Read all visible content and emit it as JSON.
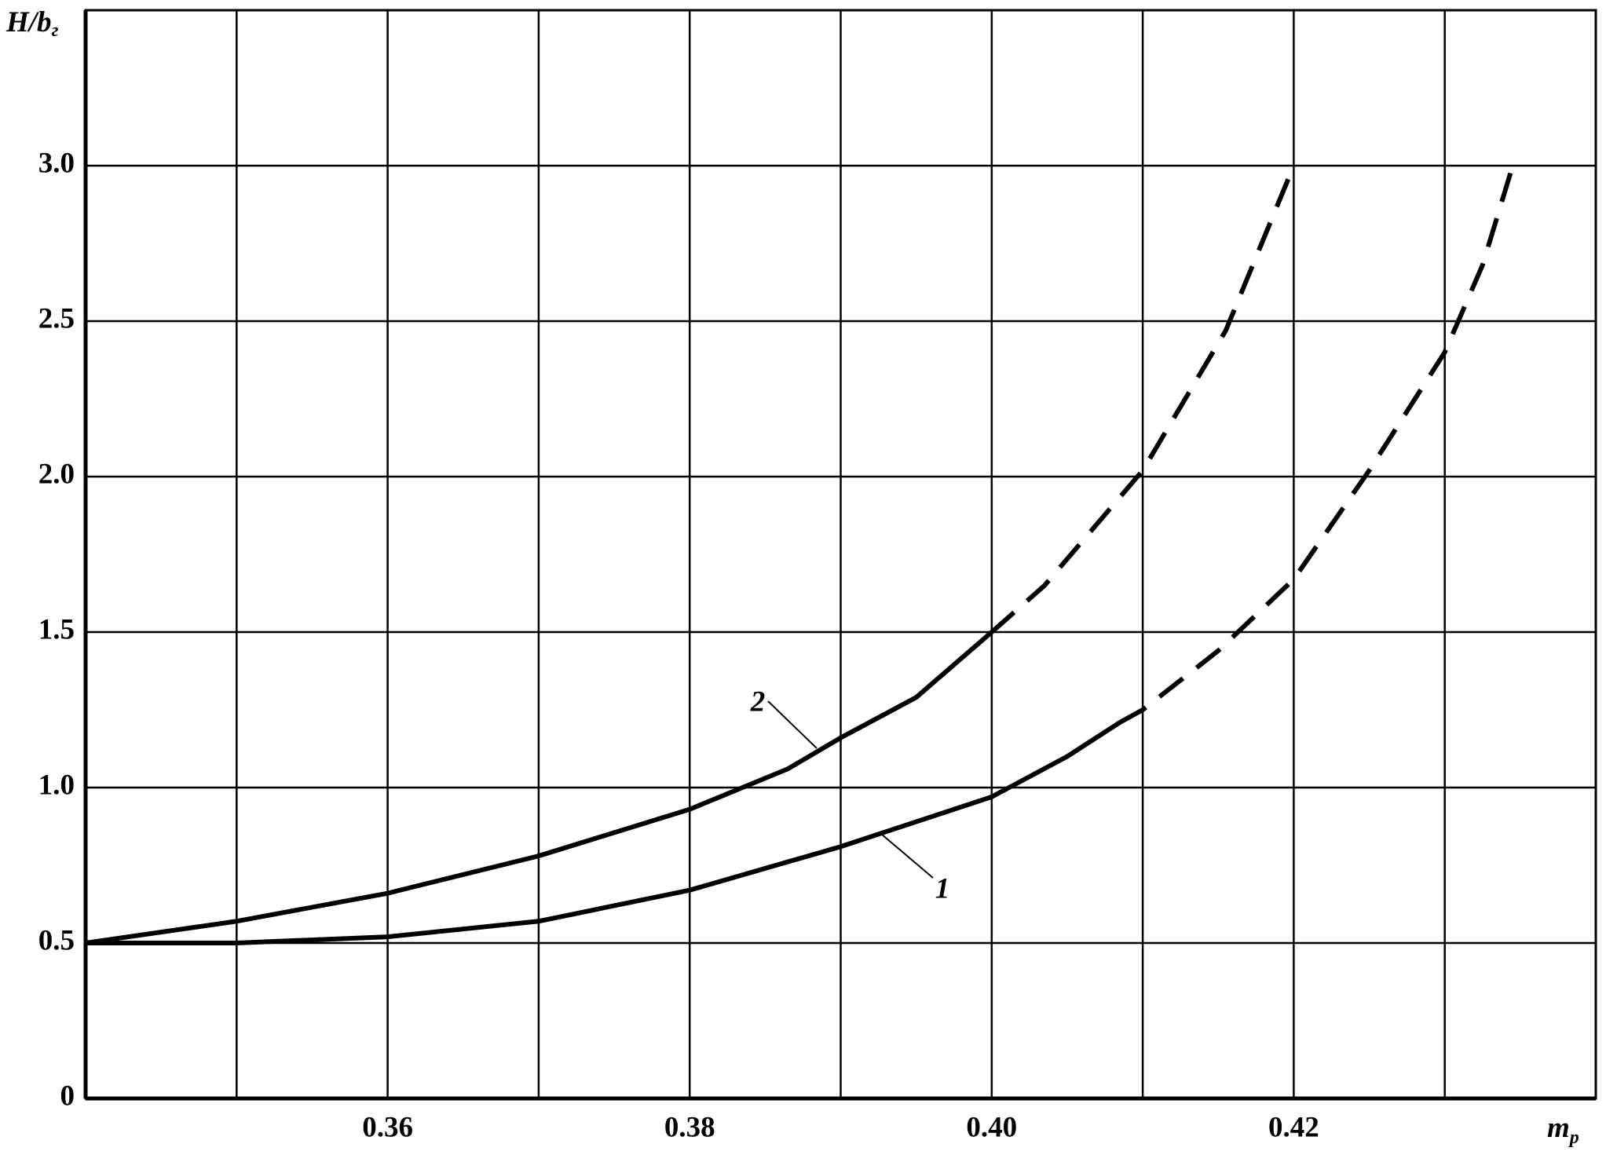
{
  "chart_data": {
    "type": "line",
    "xlabel": "m",
    "xlabel_sub": "p",
    "ylabel": "H/b",
    "ylabel_sub": "г",
    "xlim": [
      0.34,
      0.44
    ],
    "ylim": [
      0,
      3.5
    ],
    "xticks": [
      0.36,
      0.38,
      {
        "value": 0.4,
        "label": "0.40"
      },
      0.42
    ],
    "xgrid": [
      0.35,
      0.36,
      0.37,
      0.38,
      0.39,
      0.4,
      0.41,
      0.42,
      0.43
    ],
    "yticks": [
      0,
      0.5,
      {
        "value": 1,
        "label": "1.0"
      },
      1.5,
      {
        "value": 2,
        "label": "2.0"
      },
      2.5,
      {
        "value": 3,
        "label": "3.0"
      }
    ],
    "ygrid": [
      0.5,
      1,
      1.5,
      2,
      2.5,
      3
    ],
    "grid": true,
    "series": [
      {
        "name": "1",
        "color": "#000000",
        "solid": {
          "x": [
            0.34,
            0.35,
            0.36,
            0.37,
            0.38,
            0.39,
            0.4,
            0.405,
            0.4085
          ],
          "values": [
            0.5,
            0.5,
            0.52,
            0.57,
            0.67,
            0.81,
            0.97,
            1.1,
            1.21
          ]
        },
        "dashed": {
          "x": [
            0.4085,
            0.41,
            0.415,
            0.42,
            0.425,
            0.43,
            0.4325,
            0.4345
          ],
          "values": [
            1.21,
            1.25,
            1.44,
            1.67,
            2.02,
            2.4,
            2.68,
            3.0
          ]
        }
      },
      {
        "name": "2",
        "color": "#000000",
        "solid": {
          "x": [
            0.34,
            0.35,
            0.36,
            0.37,
            0.38,
            0.3865,
            0.39,
            0.395,
            0.4
          ],
          "values": [
            0.5,
            0.57,
            0.66,
            0.78,
            0.93,
            1.06,
            1.16,
            1.29,
            1.5
          ]
        },
        "dashed": {
          "x": [
            0.4,
            0.4035,
            0.41,
            0.4155,
            0.42
          ],
          "values": [
            1.5,
            1.65,
            2.02,
            2.47,
            3.0
          ]
        }
      }
    ]
  }
}
